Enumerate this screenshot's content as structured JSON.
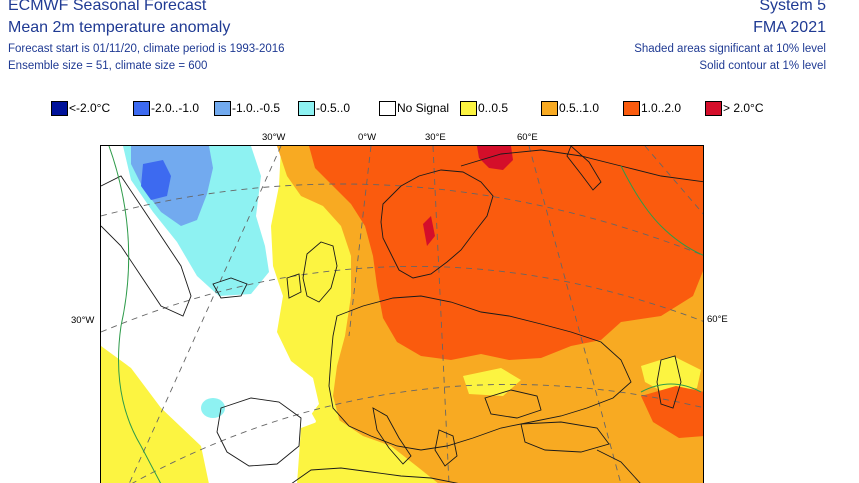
{
  "header": {
    "title": "ECMWF Seasonal Forecast",
    "subtitle": "Mean 2m temperature anomaly",
    "forecast_start": "Forecast start is 01/11/20, climate period is 1993-2016",
    "ensemble": "Ensemble size = 51, climate size = 600",
    "system": "System 5",
    "period": "FMA 2021",
    "shaded_note": "Shaded areas significant at 10% level",
    "solid_note": "Solid contour at 1% level"
  },
  "legend": [
    {
      "label": "<-2.0°C",
      "color": "#00129a"
    },
    {
      "label": "-2.0..-1.0",
      "color": "#3d6af0"
    },
    {
      "label": "-1.0..-0.5",
      "color": "#72aaef"
    },
    {
      "label": "-0.5..0",
      "color": "#8ef2f2"
    },
    {
      "label": "No Signal",
      "color": "#ffffff"
    },
    {
      "label": "0..0.5",
      "color": "#fcf441"
    },
    {
      "label": "0.5..1.0",
      "color": "#f8aa22"
    },
    {
      "label": "1.0..2.0",
      "color": "#fa5b0e"
    },
    {
      "label": "> 2.0°C",
      "color": "#d40e2a"
    }
  ],
  "map": {
    "colors": {
      "yellow": "#fcf441",
      "orange": "#f8aa22",
      "red_orange": "#fa5b0e",
      "dark_red": "#d40e2a",
      "cyan": "#8ef2f2",
      "light_blue": "#72aaef",
      "blue": "#3d6af0",
      "white": "#ffffff"
    },
    "labels": {
      "top_30w": "30°W",
      "top_0": "0°W",
      "top_30e": "30°E",
      "top_60e": "60°E",
      "left_30w": "30°W",
      "right_60e": "60°E"
    }
  }
}
